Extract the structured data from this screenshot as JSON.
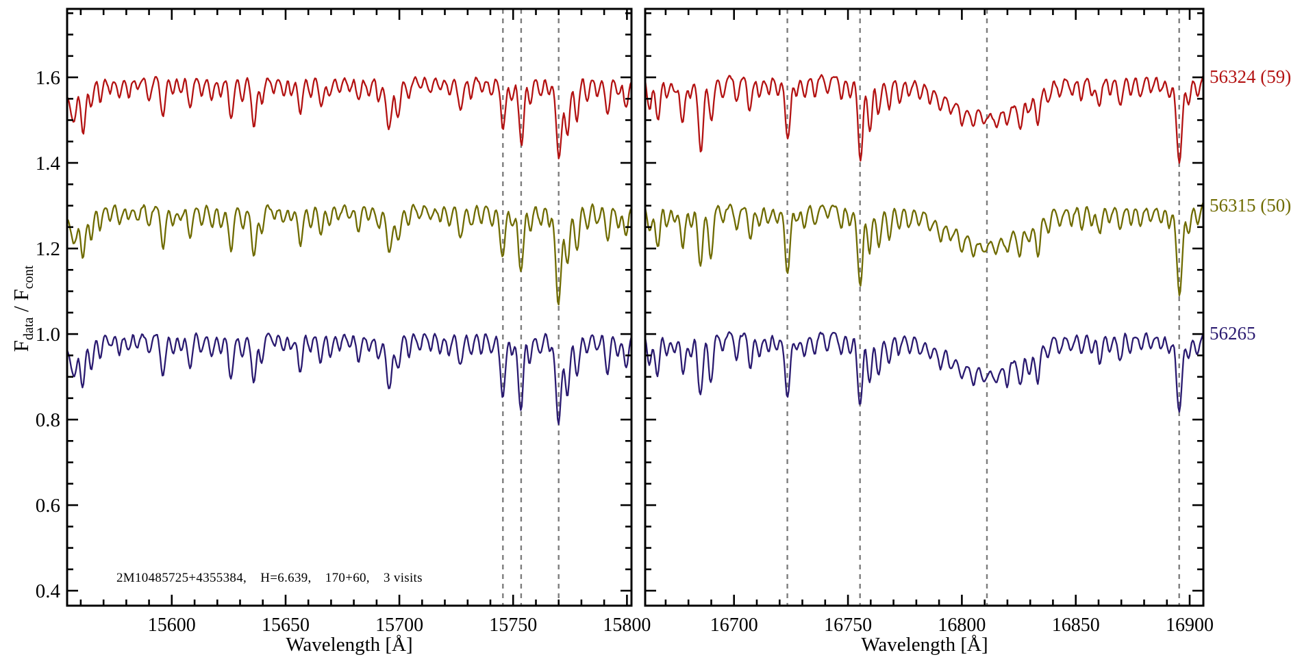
{
  "chart_data": {
    "type": "line",
    "title": "",
    "xlabel": "Wavelength [Å]",
    "ylabel": "F_data / F_cont",
    "ylabel_parts": [
      "F",
      "data",
      " / F",
      "cont"
    ],
    "ylim": [
      0.365,
      1.76
    ],
    "y_major_ticks": [
      0.4,
      0.6,
      0.8,
      1.0,
      1.2,
      1.4,
      1.6
    ],
    "y_tick_labels": [
      "0.4",
      "0.6",
      "0.8",
      "1.0",
      "1.2",
      "1.4",
      "1.6"
    ],
    "y_minor_step": 0.05,
    "x_minor_step": 10,
    "grid": false,
    "legend_position": "right-margin",
    "sample_step": 0.45,
    "noise_amplitude": 0.0075,
    "reference_line_color": "#7d7d7d",
    "axis_color": "#000000",
    "annotation": {
      "text": "2M10485725+4355384,    H=6.639,    170+60,    3 visits",
      "x": 15576,
      "y": 0.437
    },
    "series": [
      {
        "id": "56324",
        "label": "56324 (59)",
        "color": "#b31212",
        "offset": 0.6,
        "continuum_level": 1.6
      },
      {
        "id": "56315",
        "label": "56315 (50)",
        "color": "#6f6b00",
        "offset": 0.3,
        "continuum_level": 1.3
      },
      {
        "id": "56265",
        "label": "56265",
        "color": "#2a1a70",
        "offset": 0.0,
        "continuum_level": 1.0
      }
    ],
    "panels": [
      {
        "name": "left",
        "xlim": [
          15554,
          15802
        ],
        "x_major_ticks": [
          15600,
          15650,
          15700,
          15750,
          15800
        ],
        "dashed_lines": [
          15745.5,
          15753.5,
          15770
        ],
        "broad_lines": [
          [
            15552,
            0.04,
            6
          ]
        ],
        "lines": [
          [
            15557,
            0.07,
            1.2
          ],
          [
            15561,
            0.11,
            1.0
          ],
          [
            15564.5,
            0.075,
            0.9
          ],
          [
            15568.5,
            0.055,
            0.9
          ],
          [
            15573,
            0.035,
            0.9
          ],
          [
            15577,
            0.045,
            0.9
          ],
          [
            15581,
            0.04,
            0.9
          ],
          [
            15585,
            0.035,
            0.9
          ],
          [
            15590,
            0.05,
            1.0
          ],
          [
            15596,
            0.095,
            1.1
          ],
          [
            15600.5,
            0.04,
            0.9
          ],
          [
            15604,
            0.035,
            0.9
          ],
          [
            15608,
            0.075,
            1.0
          ],
          [
            15613,
            0.045,
            0.9
          ],
          [
            15617.5,
            0.05,
            0.9
          ],
          [
            15621.5,
            0.045,
            0.9
          ],
          [
            15626,
            0.105,
            1.1
          ],
          [
            15631,
            0.05,
            0.9
          ],
          [
            15636,
            0.115,
            1.1
          ],
          [
            15639.5,
            0.06,
            0.9
          ],
          [
            15645,
            0.035,
            0.9
          ],
          [
            15649,
            0.04,
            0.9
          ],
          [
            15652.5,
            0.035,
            0.9
          ],
          [
            15656.5,
            0.085,
            1.0
          ],
          [
            15661,
            0.045,
            0.9
          ],
          [
            15665.5,
            0.07,
            1.0
          ],
          [
            15669.5,
            0.05,
            0.9
          ],
          [
            15673.5,
            0.035,
            0.9
          ],
          [
            15678,
            0.03,
            0.9
          ],
          [
            15682,
            0.06,
            1.0
          ],
          [
            15686.5,
            0.045,
            0.9
          ],
          [
            15691,
            0.05,
            1.0
          ],
          [
            15695.5,
            0.115,
            1.2
          ],
          [
            15699.5,
            0.09,
            1.1
          ],
          [
            15704,
            0.05,
            0.9
          ],
          [
            15709,
            0.03,
            0.9
          ],
          [
            15713.5,
            0.035,
            0.9
          ],
          [
            15718,
            0.04,
            0.9
          ],
          [
            15722,
            0.045,
            0.9
          ],
          [
            15727,
            0.08,
            1.1
          ],
          [
            15731.5,
            0.045,
            0.9
          ],
          [
            15736,
            0.04,
            0.9
          ],
          [
            15740.5,
            0.045,
            0.9
          ],
          [
            15745.5,
            0.135,
            1.1
          ],
          [
            15749.5,
            0.05,
            0.9
          ],
          [
            15753.5,
            0.17,
            1.1
          ],
          [
            15757.5,
            0.06,
            0.9
          ],
          [
            15762,
            0.05,
            0.9
          ],
          [
            15766,
            0.04,
            0.9
          ],
          [
            15770,
            0.215,
            1.2
          ],
          [
            15774,
            0.14,
            1.1
          ],
          [
            15778,
            0.1,
            1.0
          ],
          [
            15782.5,
            0.05,
            0.9
          ],
          [
            15787,
            0.04,
            0.9
          ],
          [
            15791.5,
            0.09,
            1.0
          ],
          [
            15796,
            0.05,
            0.9
          ],
          [
            15799.5,
            0.075,
            1.0
          ]
        ]
      },
      {
        "name": "right",
        "xlim": [
          16661,
          16906
        ],
        "x_major_ticks": [
          16700,
          16750,
          16800,
          16850,
          16900
        ],
        "dashed_lines": [
          16723.4,
          16755.3,
          16811,
          16895.4
        ],
        "broad_lines": [
          [
            16811,
            0.085,
            15
          ]
        ],
        "lines": [
          [
            16663,
            0.07,
            1.0
          ],
          [
            16666.5,
            0.095,
            1.0
          ],
          [
            16670.5,
            0.05,
            0.9
          ],
          [
            16674,
            0.04,
            0.9
          ],
          [
            16677.5,
            0.1,
            1.0
          ],
          [
            16681,
            0.05,
            0.9
          ],
          [
            16685.3,
            0.16,
            1.1
          ],
          [
            16690,
            0.115,
            1.0
          ],
          [
            16695,
            0.04,
            0.9
          ],
          [
            16701,
            0.06,
            0.9
          ],
          [
            16707,
            0.07,
            1.0
          ],
          [
            16711,
            0.05,
            0.9
          ],
          [
            16715,
            0.04,
            0.9
          ],
          [
            16719,
            0.035,
            0.9
          ],
          [
            16723.4,
            0.145,
            1.1
          ],
          [
            16727.5,
            0.045,
            0.9
          ],
          [
            16731,
            0.055,
            0.9
          ],
          [
            16735.5,
            0.04,
            0.9
          ],
          [
            16741,
            0.035,
            0.9
          ],
          [
            16747,
            0.045,
            0.9
          ],
          [
            16751,
            0.05,
            0.9
          ],
          [
            16755.3,
            0.18,
            1.1
          ],
          [
            16759.5,
            0.115,
            1.0
          ],
          [
            16763.5,
            0.09,
            1.0
          ],
          [
            16768,
            0.07,
            1.0
          ],
          [
            16772.5,
            0.05,
            0.9
          ],
          [
            16777,
            0.04,
            0.9
          ],
          [
            16781.5,
            0.035,
            0.9
          ],
          [
            16786,
            0.04,
            0.9
          ],
          [
            16790.5,
            0.045,
            0.9
          ],
          [
            16795,
            0.035,
            0.9
          ],
          [
            16800,
            0.04,
            0.9
          ],
          [
            16805,
            0.035,
            0.9
          ],
          [
            16810,
            0.03,
            0.9
          ],
          [
            16815,
            0.035,
            0.9
          ],
          [
            16820,
            0.045,
            0.9
          ],
          [
            16825.5,
            0.06,
            1.0
          ],
          [
            16829.5,
            0.05,
            0.9
          ],
          [
            16833.5,
            0.085,
            1.0
          ],
          [
            16838,
            0.045,
            0.9
          ],
          [
            16843,
            0.035,
            0.9
          ],
          [
            16848,
            0.04,
            0.9
          ],
          [
            16852.5,
            0.05,
            0.9
          ],
          [
            16857,
            0.045,
            0.9
          ],
          [
            16860.5,
            0.07,
            1.0
          ],
          [
            16865,
            0.04,
            0.9
          ],
          [
            16869.5,
            0.065,
            1.0
          ],
          [
            16874,
            0.04,
            0.9
          ],
          [
            16878.5,
            0.045,
            0.9
          ],
          [
            16883,
            0.035,
            0.9
          ],
          [
            16887.5,
            0.04,
            0.9
          ],
          [
            16891,
            0.045,
            0.9
          ],
          [
            16895.4,
            0.2,
            1.2
          ],
          [
            16899.5,
            0.06,
            0.9
          ],
          [
            16903.5,
            0.05,
            0.9
          ]
        ]
      }
    ]
  }
}
